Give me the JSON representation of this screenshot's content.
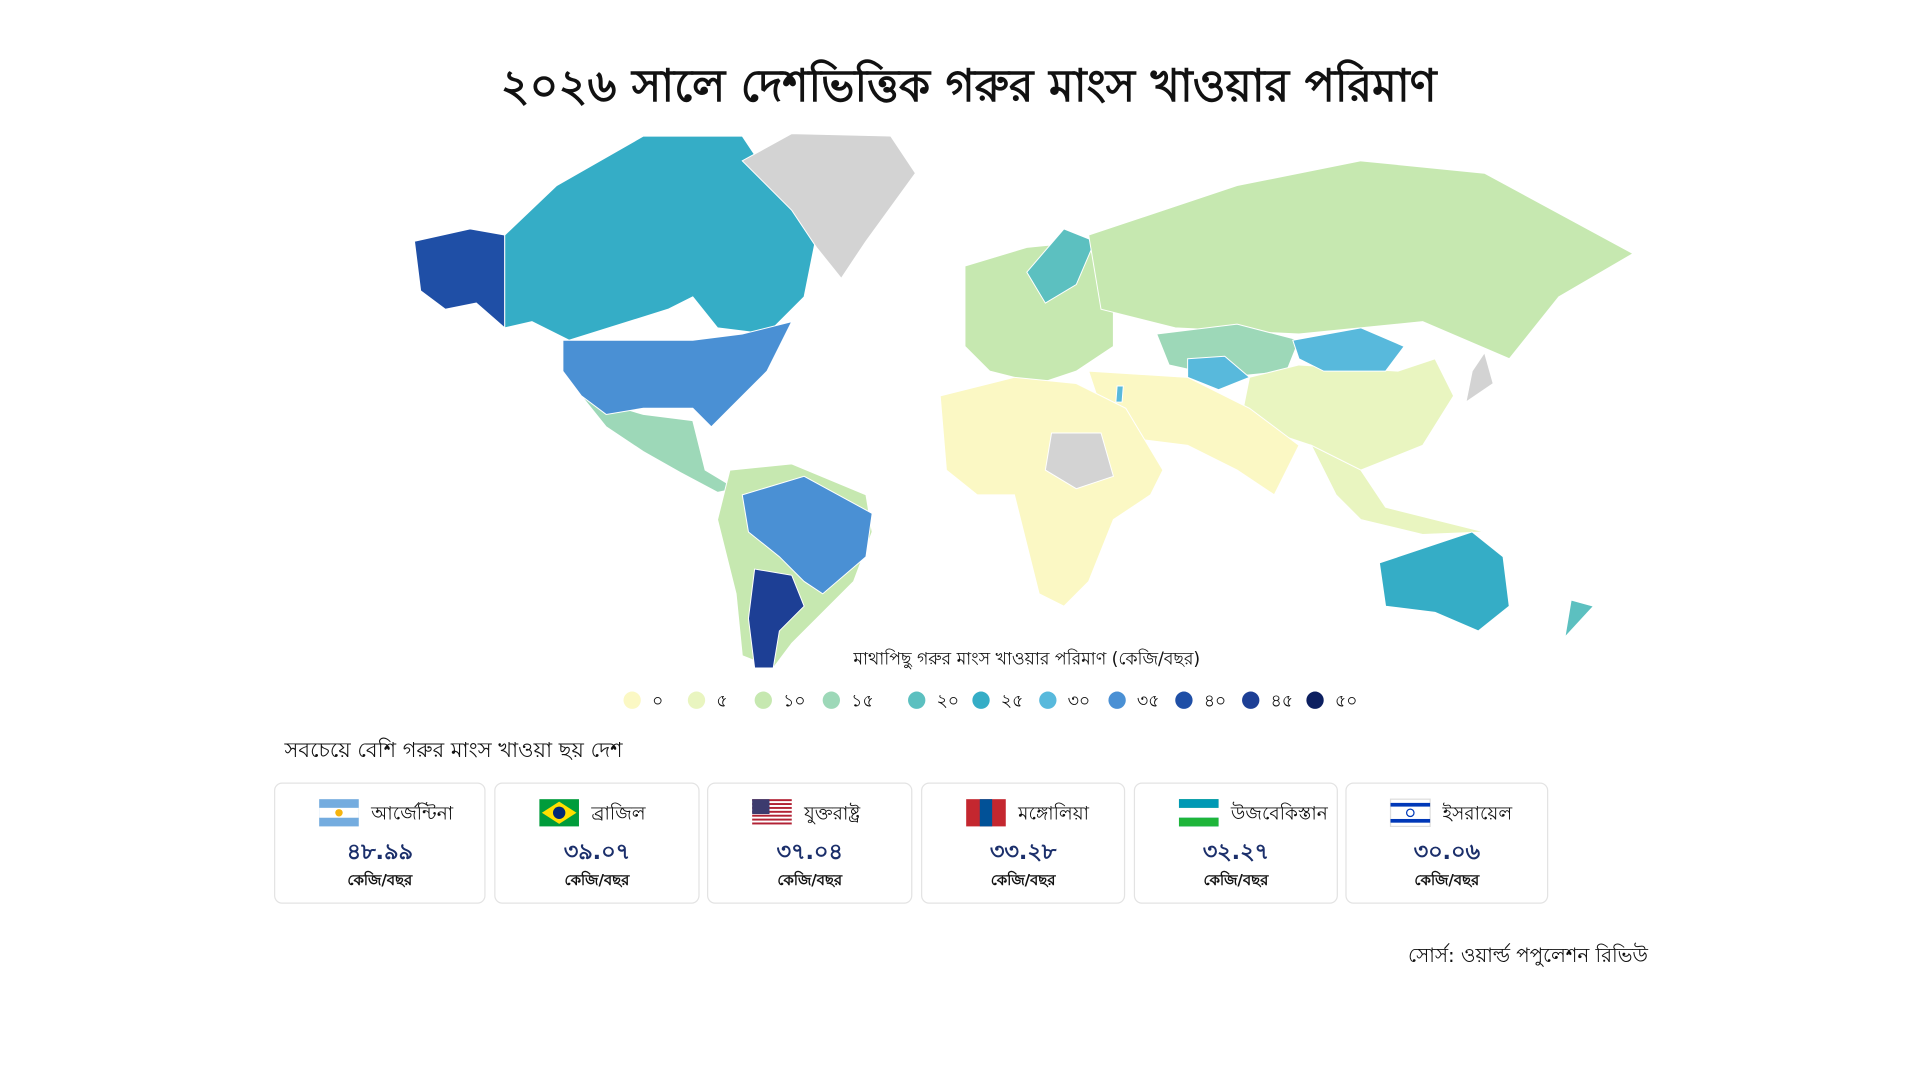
{
  "title": "২০২৬ সালে দেশভিত্তিক গরুর মাংস খাওয়ার পরিমাণ",
  "map": {
    "legend_title": "মাথাপিছু গরুর মাংস খাওয়ার পরিমাণ (কেজি/বছর)",
    "legend": [
      {
        "value": 0,
        "label": "০",
        "color": "#fbf8c4"
      },
      {
        "value": 5,
        "label": "৫",
        "color": "#e9f5c0"
      },
      {
        "value": 10,
        "label": "১০",
        "color": "#c6e8b0"
      },
      {
        "value": 15,
        "label": "১৫",
        "color": "#9dd8b8"
      },
      {
        "value": 20,
        "label": "২০",
        "color": "#5cc0c0"
      },
      {
        "value": 25,
        "label": "২৫",
        "color": "#35adc6"
      },
      {
        "value": 30,
        "label": "৩০",
        "color": "#58b9dc"
      },
      {
        "value": 35,
        "label": "৩৫",
        "color": "#4a90d4"
      },
      {
        "value": 40,
        "label": "৪০",
        "color": "#1f4fa6"
      },
      {
        "value": 45,
        "label": "৪৫",
        "color": "#1d3f95"
      },
      {
        "value": 50,
        "label": "৫০",
        "color": "#0c1f60"
      }
    ]
  },
  "top_section": {
    "title": "সবচেয়ে বেশি গরুর মাংস খাওয়া ছয় দেশ",
    "unit": "কেজি/বছর",
    "countries": [
      {
        "name": "আর্জেন্টিনা",
        "value": 48.99,
        "value_label": "৪৮.৯৯"
      },
      {
        "name": "ব্রাজিল",
        "value": 39.07,
        "value_label": "৩৯.০৭"
      },
      {
        "name": "যুক্তরাষ্ট্র",
        "value": 37.04,
        "value_label": "৩৭.০৪"
      },
      {
        "name": "মঙ্গোলিয়া",
        "value": 33.28,
        "value_label": "৩৩.২৮"
      },
      {
        "name": "উজবেকিস্তান",
        "value": 32.27,
        "value_label": "৩২.২৭"
      },
      {
        "name": "ইসরায়েল",
        "value": 30.06,
        "value_label": "৩০.০৬"
      }
    ]
  },
  "source": "সোর্স: ওয়ার্ল্ড পপুলেশন রিভিউ"
}
